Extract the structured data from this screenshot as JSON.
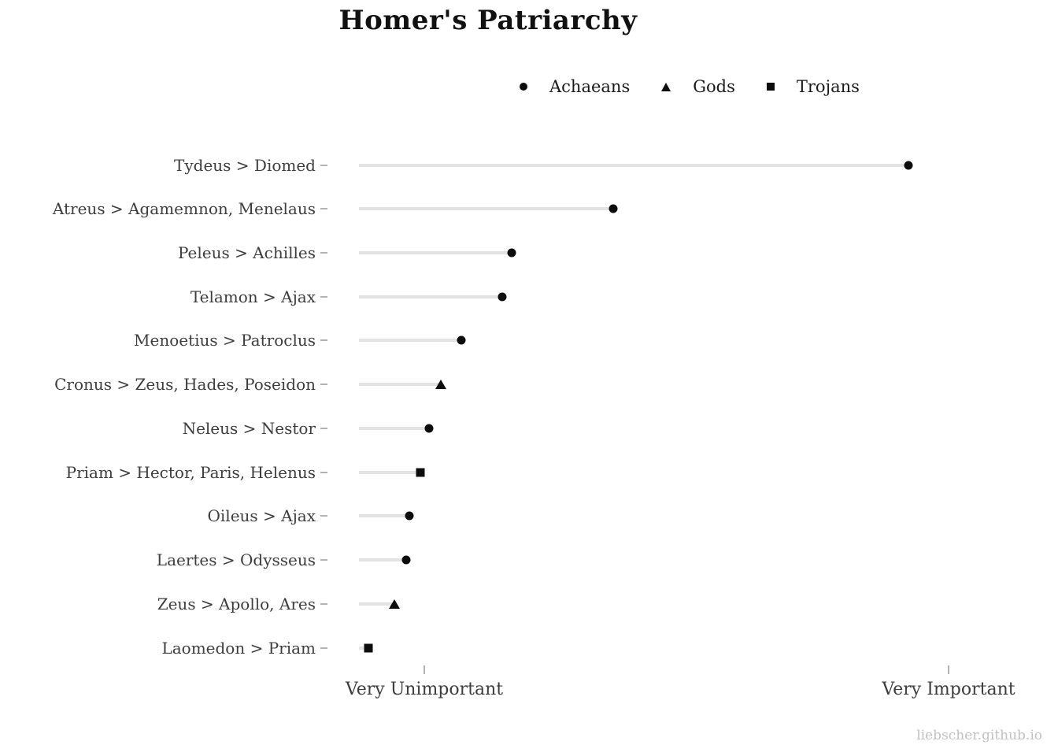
{
  "title": "Homer's Patriarchy",
  "watermark": "liebscher.github.io",
  "legend": [
    {
      "name": "Achaeans",
      "marker": "circle"
    },
    {
      "name": "Gods",
      "marker": "triangle"
    },
    {
      "name": "Trojans",
      "marker": "square"
    }
  ],
  "axis": {
    "left_label": "Very Unimportant",
    "right_label": "Very Important"
  },
  "chart_data": {
    "type": "scatter",
    "variant": "lollipop-dot-plot",
    "title": "Homer's Patriarchy",
    "xlabel": "",
    "ylabel": "",
    "x_axis": {
      "tick_labels": [
        "Very Unimportant",
        "Very Important"
      ],
      "scale_note": "qualitative importance; value 0 = 'Very Unimportant' tick, 1 = 'Very Important' tick; stems all start at -0.125",
      "line_start_value": -0.125
    },
    "legend_position": "top",
    "grid": false,
    "marker_color": "#0d0d0d",
    "stem_color": "#e3e3e3",
    "categories": [
      "Tydeus > Diomed",
      "Atreus > Agamemnon, Menelaus",
      "Peleus > Achilles",
      "Telamon > Ajax",
      "Menoetius > Patroclus",
      "Cronus > Zeus, Hades, Poseidon",
      "Neleus > Nestor",
      "Priam > Hector, Paris, Helenus",
      "Oileus > Ajax",
      "Laertes > Odysseus",
      "Zeus > Apollo, Ares",
      "Laomedon > Priam"
    ],
    "rows": [
      {
        "label": "Tydeus > Diomed",
        "group": "Achaeans",
        "value": 0.923
      },
      {
        "label": "Atreus > Agamemnon, Menelaus",
        "group": "Achaeans",
        "value": 0.36
      },
      {
        "label": "Peleus > Achilles",
        "group": "Achaeans",
        "value": 0.167
      },
      {
        "label": "Telamon > Ajax",
        "group": "Achaeans",
        "value": 0.149
      },
      {
        "label": "Menoetius > Patroclus",
        "group": "Achaeans",
        "value": 0.071
      },
      {
        "label": "Cronus > Zeus, Hades, Poseidon",
        "group": "Gods",
        "value": 0.032
      },
      {
        "label": "Neleus > Nestor",
        "group": "Achaeans",
        "value": 0.009
      },
      {
        "label": "Priam > Hector, Paris, Helenus",
        "group": "Trojans",
        "value": -0.008
      },
      {
        "label": "Oileus > Ajax",
        "group": "Achaeans",
        "value": -0.029
      },
      {
        "label": "Laertes > Odysseus",
        "group": "Achaeans",
        "value": -0.035
      },
      {
        "label": "Zeus > Apollo, Ares",
        "group": "Gods",
        "value": -0.057
      },
      {
        "label": "Laomedon > Priam",
        "group": "Trojans",
        "value": -0.107
      }
    ]
  }
}
